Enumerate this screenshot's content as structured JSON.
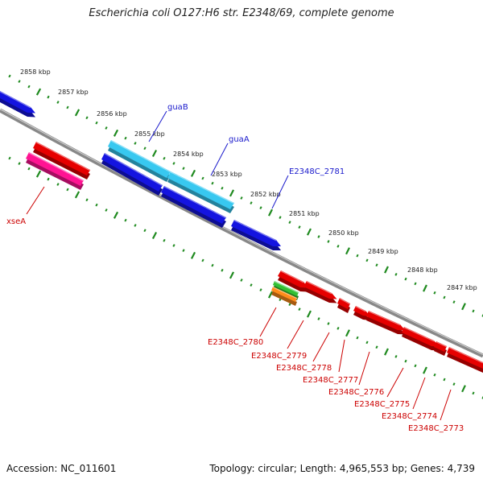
{
  "title": "Escherichia coli O127:H6 str. E2348/69, complete genome",
  "accession_text": "Accession: NC_011601",
  "summary_text": "Topology: circular; Length: 4,965,553 bp; Genes: 4,739",
  "colors": {
    "backbone": "#8a8a8a",
    "scale_dots": "#1f8a1f",
    "forward_gene": "#1414e0",
    "forward_gene_alt": "#38c8f0",
    "reverse_gene": "#e60000",
    "reverse_gene_alt": "#ff1493",
    "green_gene": "#33c033",
    "orange_gene": "#ff8c1a"
  },
  "scale_labels": [
    "2858 kbp",
    "2857 kbp",
    "2856 kbp",
    "2855 kbp",
    "2854 kbp",
    "2853 kbp",
    "2852 kbp",
    "2851 kbp",
    "2850 kbp",
    "2849 kbp",
    "2848 kbp",
    "2847 kbp"
  ],
  "gene_labels_forward": [
    "guaB",
    "guaA",
    "E2348C_2781"
  ],
  "gene_labels_reverse": [
    "xseA",
    "E2348C_2780",
    "E2348C_2779",
    "E2348C_2778",
    "E2348C_2777",
    "E2348C_2776",
    "E2348C_2775",
    "E2348C_2774",
    "E2348C_2773"
  ]
}
